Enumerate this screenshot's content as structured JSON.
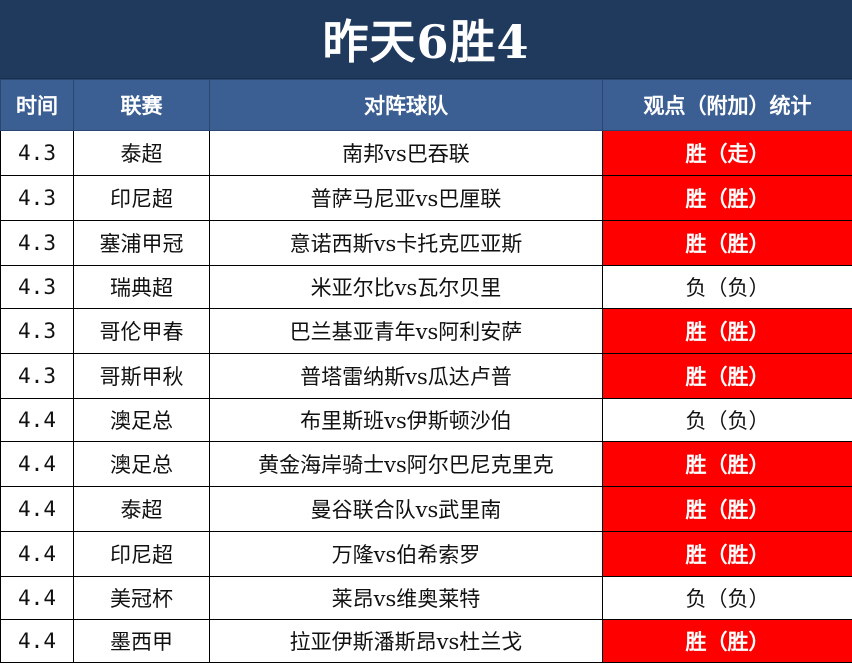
{
  "title": "昨天6胜4",
  "headers": {
    "time": "时间",
    "league": "联赛",
    "match": "对阵球队",
    "result": "观点（附加）统计"
  },
  "colors": {
    "title_bg": "#203a5e",
    "header_bg": "#3b5f93",
    "win_bg": "#ff0000"
  },
  "rows": [
    {
      "time": "4.3",
      "league": "泰超",
      "match": "南邦vs巴吞联",
      "result": "胜（走）",
      "win": true
    },
    {
      "time": "4.3",
      "league": "印尼超",
      "match": "普萨马尼亚vs巴厘联",
      "result": "胜（胜）",
      "win": true
    },
    {
      "time": "4.3",
      "league": "塞浦甲冠",
      "match": "意诺西斯vs卡托克匹亚斯",
      "result": "胜（胜）",
      "win": true
    },
    {
      "time": "4.3",
      "league": "瑞典超",
      "match": "米亚尔比vs瓦尔贝里",
      "result": "负（负）",
      "win": false
    },
    {
      "time": "4.3",
      "league": "哥伦甲春",
      "match": "巴兰基亚青年vs阿利安萨",
      "result": "胜（胜）",
      "win": true
    },
    {
      "time": "4.3",
      "league": "哥斯甲秋",
      "match": "普塔雷纳斯vs瓜达卢普",
      "result": "胜（胜）",
      "win": true
    },
    {
      "time": "4.4",
      "league": "澳足总",
      "match": "布里斯班vs伊斯顿沙伯",
      "result": "负（负）",
      "win": false
    },
    {
      "time": "4.4",
      "league": "澳足总",
      "match": "黄金海岸骑士vs阿尔巴尼克里克",
      "result": "胜（胜）",
      "win": true
    },
    {
      "time": "4.4",
      "league": "泰超",
      "match": "曼谷联合队vs武里南",
      "result": "胜（胜）",
      "win": true
    },
    {
      "time": "4.4",
      "league": "印尼超",
      "match": "万隆vs伯希索罗",
      "result": "胜（胜）",
      "win": true
    },
    {
      "time": "4.4",
      "league": "美冠杯",
      "match": "莱昂vs维奥莱特",
      "result": "负（负）",
      "win": false
    },
    {
      "time": "4.4",
      "league": "墨西甲",
      "match": "拉亚伊斯潘斯昂vs杜兰戈",
      "result": "胜（胜）",
      "win": true
    }
  ]
}
